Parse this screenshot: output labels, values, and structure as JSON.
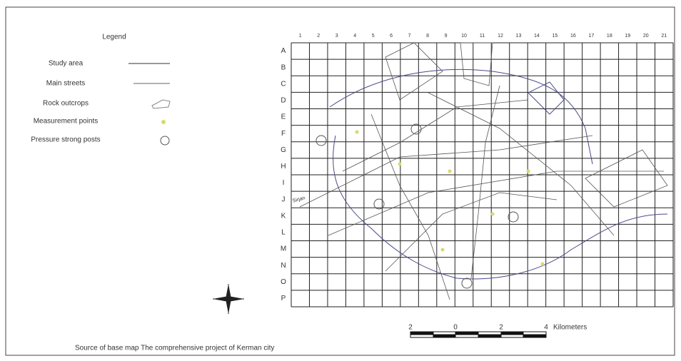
{
  "legend": {
    "title": "Legend",
    "items": [
      "Study area",
      "Main streets",
      "Rock outcrops",
      "Measurement points",
      "Pressure strong posts"
    ]
  },
  "grid": {
    "columns": [
      "1",
      "2",
      "3",
      "4",
      "5",
      "6",
      "7",
      "8",
      "9",
      "10",
      "11",
      "12",
      "13",
      "14",
      "15",
      "16",
      "17",
      "18",
      "19",
      "20",
      "21"
    ],
    "rows": [
      "A",
      "B",
      "C",
      "D",
      "E",
      "F",
      "G",
      "H",
      "I",
      "J",
      "K",
      "L",
      "M",
      "N",
      "O",
      "P"
    ]
  },
  "road_label": "Sirjan",
  "scale_bar": {
    "labels": [
      "2",
      "0",
      "2",
      "4"
    ],
    "unit": "Kilometers"
  },
  "source": "Source of base map The comprehensive project of Kerman city"
}
